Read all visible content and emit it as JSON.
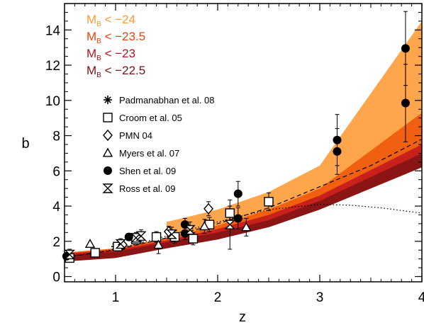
{
  "chart_data": {
    "type": "scatter",
    "xlabel": "z",
    "ylabel": "b",
    "xlim": [
      0.5,
      4
    ],
    "ylim": [
      -0.3,
      15.5
    ],
    "xticks": [
      1,
      2,
      3,
      4
    ],
    "yticks": [
      0,
      2,
      4,
      6,
      8,
      10,
      12,
      14
    ],
    "grid": false,
    "magnitude_labels": [
      {
        "text_prefix": "M",
        "subscript": "B",
        "text_suffix": " < −24",
        "color": "#ff9933"
      },
      {
        "text_prefix": "M",
        "subscript": "B",
        "text_suffix": " < −23.5",
        "color": "#e8460a"
      },
      {
        "text_prefix": "M",
        "subscript": "B",
        "text_suffix": " < −23",
        "color": "#b8141e"
      },
      {
        "text_prefix": "M",
        "subscript": "B",
        "text_suffix": " < −22.5",
        "color": "#7a0f14"
      }
    ],
    "bands": [
      {
        "name": "M_B < -24",
        "color": "#ffa64d",
        "x": [
          1.5,
          2.0,
          2.5,
          3.0,
          4.0
        ],
        "lower": [
          1.6,
          2.3,
          3.0,
          4.2,
          6.8
        ],
        "upper": [
          3.1,
          3.8,
          4.8,
          6.3,
          14.5
        ]
      },
      {
        "name": "M_B < -23.5",
        "color": "#f06010",
        "x": [
          0.5,
          1.0,
          1.5,
          2.0,
          2.5,
          3.0,
          4.0
        ],
        "lower": [
          0.95,
          1.15,
          1.7,
          2.3,
          3.0,
          4.0,
          7.0
        ],
        "upper": [
          1.35,
          1.6,
          2.2,
          2.9,
          3.8,
          5.0,
          9.3
        ]
      },
      {
        "name": "M_B < -23",
        "color": "#c8201a",
        "x": [
          0.5,
          1.0,
          1.5,
          2.0,
          2.5,
          3.0,
          4.0
        ],
        "lower": [
          0.9,
          1.1,
          1.65,
          2.2,
          2.9,
          3.9,
          6.5
        ],
        "upper": [
          1.3,
          1.5,
          2.05,
          2.7,
          3.5,
          4.6,
          7.5
        ]
      },
      {
        "name": "M_B < -22.5",
        "color": "#8b1414",
        "x": [
          0.5,
          1.0,
          1.5,
          2.0,
          2.5,
          3.0,
          4.0
        ],
        "lower": [
          0.85,
          1.05,
          1.6,
          2.1,
          2.8,
          3.8,
          6.2
        ],
        "upper": [
          1.2,
          1.4,
          1.95,
          2.5,
          3.2,
          4.3,
          7.0
        ]
      }
    ],
    "dashed_line": {
      "x": [
        0.5,
        1.0,
        1.5,
        2.0,
        2.5,
        3.0,
        3.5,
        4.0
      ],
      "y": [
        1.1,
        1.5,
        2.2,
        3.0,
        3.9,
        5.1,
        6.3,
        7.8
      ]
    },
    "dotted_line": {
      "x": [
        0.5,
        1.0,
        1.5,
        2.0,
        2.5,
        3.0,
        3.3,
        3.6,
        4.0
      ],
      "y": [
        1.1,
        1.55,
        2.3,
        3.1,
        3.8,
        4.1,
        4.05,
        3.9,
        3.6
      ]
    },
    "legend": [
      {
        "marker": "asterisk",
        "label": "Padmanabhan et al. 08"
      },
      {
        "marker": "square",
        "label": "Croom et al. 05"
      },
      {
        "marker": "diamond",
        "label": "PMN 04"
      },
      {
        "marker": "triangle",
        "label": "Myers et al. 07"
      },
      {
        "marker": "filled-circle",
        "label": "Shen et al. 09"
      },
      {
        "marker": "hourglass",
        "label": "Ross et al. 09"
      }
    ],
    "points": [
      {
        "marker": "asterisk",
        "x": 1.0,
        "y": 1.7,
        "err": 0.2
      },
      {
        "marker": "square",
        "x": 0.55,
        "y": 1.05,
        "err": 0.2
      },
      {
        "marker": "square",
        "x": 0.8,
        "y": 1.35,
        "err": 0.2
      },
      {
        "marker": "square",
        "x": 1.02,
        "y": 1.7,
        "err": 0.25
      },
      {
        "marker": "square",
        "x": 1.2,
        "y": 2.1,
        "err": 0.25
      },
      {
        "marker": "square",
        "x": 1.4,
        "y": 2.25,
        "err": 0.3
      },
      {
        "marker": "square",
        "x": 1.58,
        "y": 2.25,
        "err": 0.35
      },
      {
        "marker": "square",
        "x": 1.76,
        "y": 2.15,
        "err": 0.35
      },
      {
        "marker": "square",
        "x": 1.92,
        "y": 2.95,
        "err": 0.4
      },
      {
        "marker": "square",
        "x": 2.12,
        "y": 3.6,
        "err": 0.4
      },
      {
        "marker": "square",
        "x": 2.5,
        "y": 4.25,
        "err": 0.5
      },
      {
        "marker": "diamond",
        "x": 1.07,
        "y": 1.8,
        "err": 0.25
      },
      {
        "marker": "diamond",
        "x": 1.52,
        "y": 2.55,
        "err": 0.3
      },
      {
        "marker": "diamond",
        "x": 1.91,
        "y": 3.85,
        "err": 0.4
      },
      {
        "marker": "triangle",
        "x": 0.75,
        "y": 1.85,
        "err": 0.0
      },
      {
        "marker": "triangle",
        "x": 1.42,
        "y": 1.8,
        "err": 0.5
      },
      {
        "marker": "triangle",
        "x": 1.87,
        "y": 2.85,
        "err": 0.4
      },
      {
        "marker": "triangle",
        "x": 2.28,
        "y": 2.8,
        "err": 0.5
      },
      {
        "marker": "filled-circle",
        "x": 0.52,
        "y": 1.15,
        "err": 0.2
      },
      {
        "marker": "filled-circle",
        "x": 1.13,
        "y": 2.25,
        "err": 0.2
      },
      {
        "marker": "filled-circle",
        "x": 1.68,
        "y": 2.95,
        "err": 0.35
      },
      {
        "marker": "filled-circle",
        "x": 1.68,
        "y": 2.45,
        "err": 0.35
      },
      {
        "marker": "filled-circle",
        "x": 2.2,
        "y": 4.7,
        "err": 0.7
      },
      {
        "marker": "filled-circle",
        "x": 2.2,
        "y": 3.3,
        "err": 0.6
      },
      {
        "marker": "filled-circle",
        "x": 3.17,
        "y": 7.75,
        "err": 1.45
      },
      {
        "marker": "filled-circle",
        "x": 3.17,
        "y": 7.1,
        "err": 1.3
      },
      {
        "marker": "filled-circle",
        "x": 3.84,
        "y": 12.95,
        "err": 2.1
      },
      {
        "marker": "filled-circle",
        "x": 3.84,
        "y": 9.85,
        "err": 2.2
      },
      {
        "marker": "hourglass",
        "x": 0.55,
        "y": 1.25,
        "err": 0.3
      },
      {
        "marker": "hourglass",
        "x": 1.05,
        "y": 1.85,
        "err": 0.3
      },
      {
        "marker": "hourglass",
        "x": 1.2,
        "y": 2.2,
        "err": 0.3
      },
      {
        "marker": "hourglass",
        "x": 1.25,
        "y": 2.3,
        "err": 0.35
      },
      {
        "marker": "hourglass",
        "x": 1.55,
        "y": 2.4,
        "err": 0.4
      },
      {
        "marker": "hourglass",
        "x": 1.73,
        "y": 2.65,
        "err": 0.45
      },
      {
        "marker": "hourglass",
        "x": 2.12,
        "y": 2.95,
        "err": 1.4
      }
    ]
  }
}
